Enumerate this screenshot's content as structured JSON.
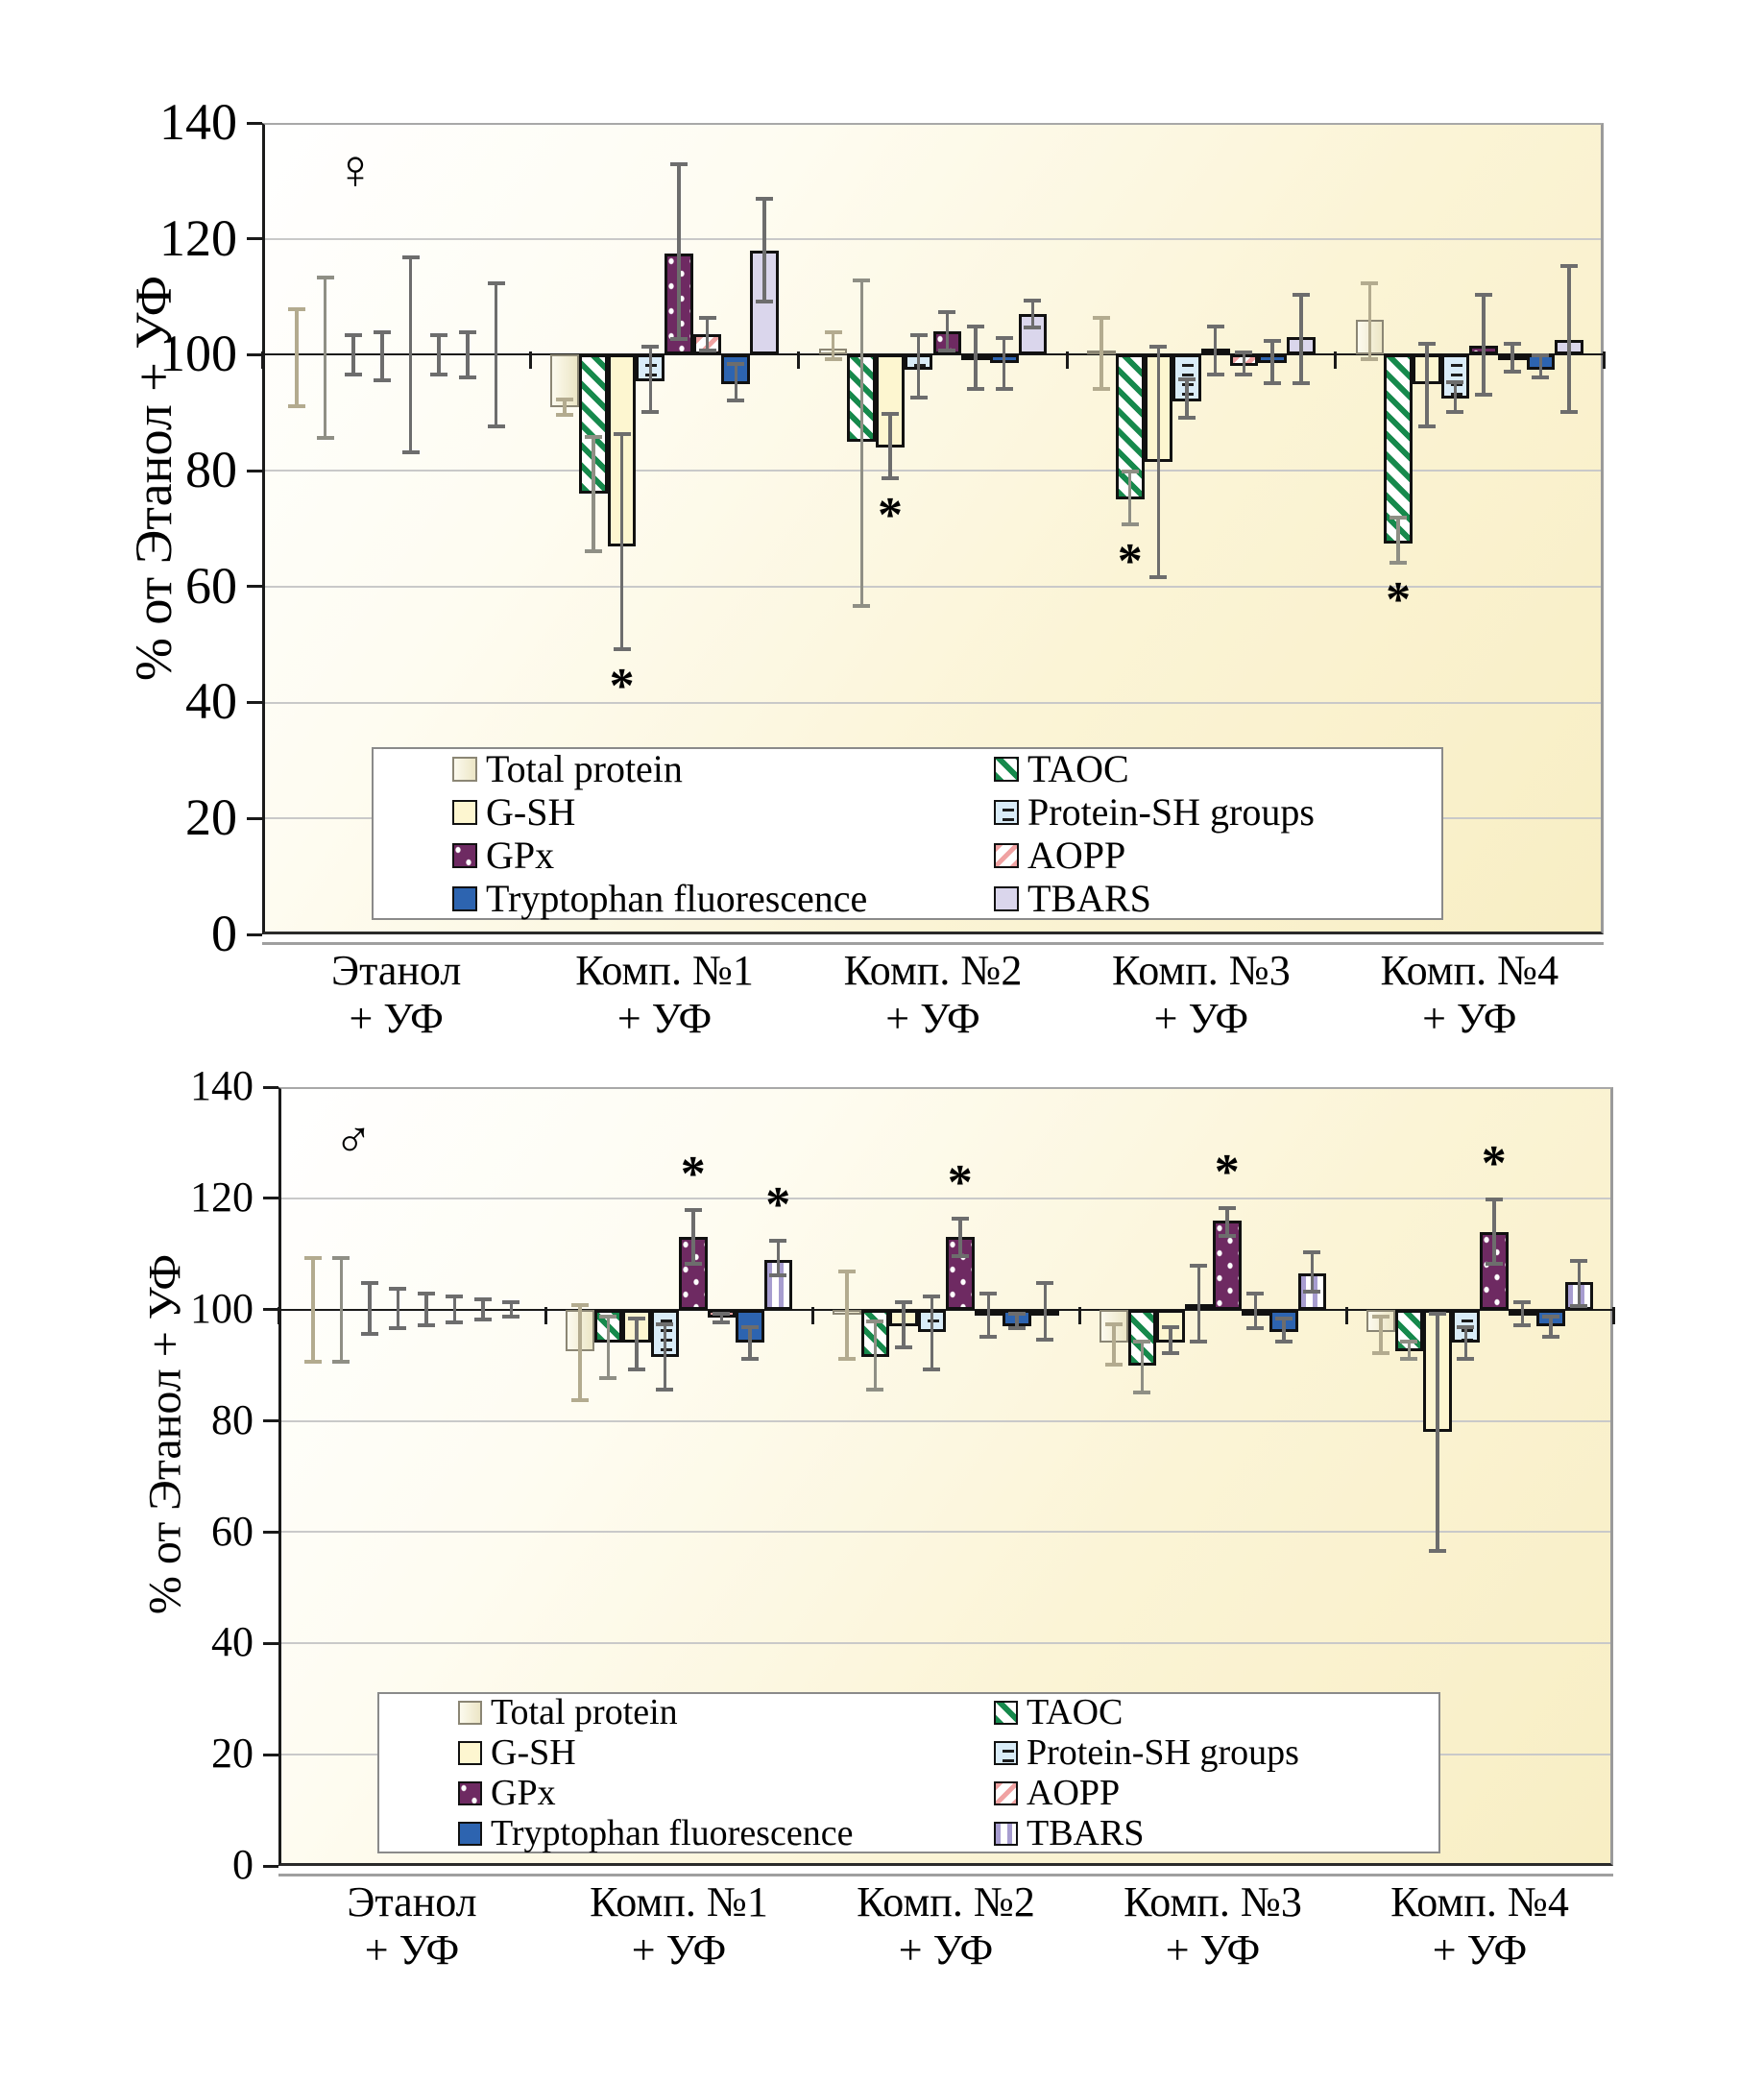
{
  "figure": {
    "annotation_symbol": "*",
    "background_color": "#ffffff",
    "plot_gradient": [
      "#ffffff",
      "#f8eec4"
    ]
  },
  "series_defs": {
    "total_protein": {
      "label": "Total protein",
      "pattern": "gradient",
      "fill": "#ece6c6",
      "fill2": "#fcfaee",
      "border": "#8b8674",
      "border_w": 2,
      "err_color": "#b3ab8f"
    },
    "taoc": {
      "label": "TAOC",
      "pattern": "stripes45",
      "fill": "#ffffff",
      "stripe": "#16894c",
      "border": "#111111",
      "border_w": 3,
      "err_color": "#8f8f85"
    },
    "gsh": {
      "label": "G-SH",
      "pattern": "solid",
      "fill": "#fdf6d0",
      "border": "#111111",
      "border_w": 3,
      "err_color": "#6d6d6d"
    },
    "protein_sh": {
      "label": "Protein-SH groups",
      "pattern": "dashes",
      "fill": "#d9ecf8",
      "stripe": "#1c1c1c",
      "border": "#111111",
      "border_w": 3,
      "err_color": "#6d6d6d"
    },
    "gpx": {
      "label": "GPx",
      "pattern": "dots",
      "fill": "#6e2a62",
      "stripe": "#ffffff",
      "border": "#111111",
      "border_w": 3,
      "err_color": "#6d6d6d"
    },
    "aopp": {
      "label": "AOPP",
      "pattern": "stripes135",
      "fill": "#ffffff",
      "stripe": "#f0a2a2",
      "border": "#111111",
      "border_w": 3,
      "err_color": "#6d6d6d"
    },
    "tryptophan": {
      "label": "Tryptophan fluorescence",
      "pattern": "solid",
      "fill": "#2d64b0",
      "border": "#111111",
      "border_w": 3,
      "err_color": "#6d6d6d"
    },
    "tbars": {
      "label": "TBARS",
      "pattern": "solid",
      "fill": "#dad6ec",
      "stripe": "#a79dd0",
      "border": "#111111",
      "border_w": 3,
      "err_color": "#6d6d6d"
    }
  },
  "legend": {
    "columns": [
      [
        "total_protein",
        "gsh",
        "gpx",
        "tryptophan"
      ],
      [
        "taoc",
        "protein_sh",
        "aopp",
        "tbars"
      ]
    ]
  },
  "bar_order": [
    "total_protein",
    "taoc",
    "gsh",
    "protein_sh",
    "gpx",
    "aopp",
    "tryptophan",
    "tbars"
  ],
  "chart_data": [
    {
      "type": "bar",
      "gender_symbol": "♀",
      "ylabel": "% от Этанол + УФ",
      "ylim": [
        0,
        140
      ],
      "yticks": [
        0,
        20,
        40,
        60,
        80,
        100,
        120,
        140
      ],
      "baseline": 100,
      "grid": true,
      "legend_position": "bottom-inside",
      "tbars_style": "solid",
      "categories": [
        [
          "Этанол",
          "+ УФ"
        ],
        [
          "Комп. №1",
          "+ УФ"
        ],
        [
          "Комп. №2",
          "+ УФ"
        ],
        [
          "Комп. №3",
          "+ УФ"
        ],
        [
          "Комп. №4",
          "+ УФ"
        ]
      ],
      "groups": [
        {
          "bars": [
            {
              "series": "total_protein",
              "value": 100,
              "err_low": 91,
              "err_high": 108,
              "star": null
            },
            {
              "series": "taoc",
              "value": 100,
              "err_low": 85.5,
              "err_high": 113.5,
              "star": null
            },
            {
              "series": "gsh",
              "value": 100,
              "err_low": 96.5,
              "err_high": 103.5,
              "star": null
            },
            {
              "series": "protein_sh",
              "value": 100,
              "err_low": 95.5,
              "err_high": 104,
              "star": null
            },
            {
              "series": "gpx",
              "value": 100,
              "err_low": 83,
              "err_high": 117,
              "star": null
            },
            {
              "series": "aopp",
              "value": 100,
              "err_low": 96.5,
              "err_high": 103.5,
              "star": null
            },
            {
              "series": "tryptophan",
              "value": 100,
              "err_low": 96,
              "err_high": 104,
              "star": null
            },
            {
              "series": "tbars",
              "value": 100,
              "err_low": 87.5,
              "err_high": 112.5,
              "star": null
            }
          ]
        },
        {
          "bars": [
            {
              "series": "total_protein",
              "value": 91,
              "err_low": 89.5,
              "err_high": 92.5,
              "star": null
            },
            {
              "series": "taoc",
              "value": 76,
              "err_low": 66,
              "err_high": 86,
              "star": null
            },
            {
              "series": "gsh",
              "value": 67,
              "err_low": 49,
              "err_high": 86.5,
              "star": "below"
            },
            {
              "series": "protein_sh",
              "value": 95.5,
              "err_low": 90,
              "err_high": 101.5,
              "star": null
            },
            {
              "series": "gpx",
              "value": 117.5,
              "err_low": 102.5,
              "err_high": 133,
              "star": null
            },
            {
              "series": "aopp",
              "value": 103.5,
              "err_low": 100.5,
              "err_high": 106.5,
              "star": null
            },
            {
              "series": "tryptophan",
              "value": 95,
              "err_low": 92,
              "err_high": 98.5,
              "star": null
            },
            {
              "series": "tbars",
              "value": 118,
              "err_low": 109,
              "err_high": 127,
              "star": null
            }
          ]
        },
        {
          "bars": [
            {
              "series": "total_protein",
              "value": 101,
              "err_low": 99,
              "err_high": 104,
              "star": null
            },
            {
              "series": "taoc",
              "value": 85,
              "err_low": 56.5,
              "err_high": 113,
              "star": null
            },
            {
              "series": "gsh",
              "value": 84,
              "err_low": 78.5,
              "err_high": 90,
              "star": "below"
            },
            {
              "series": "protein_sh",
              "value": 97.5,
              "err_low": 92.5,
              "err_high": 103.5,
              "star": null
            },
            {
              "series": "gpx",
              "value": 104,
              "err_low": 100.5,
              "err_high": 107.5,
              "star": null
            },
            {
              "series": "aopp",
              "value": 99,
              "err_low": 94,
              "err_high": 105,
              "star": null
            },
            {
              "series": "tryptophan",
              "value": 98.5,
              "err_low": 94,
              "err_high": 103,
              "star": null
            },
            {
              "series": "tbars",
              "value": 107,
              "err_low": 104.5,
              "err_high": 109.5,
              "star": null
            }
          ]
        },
        {
          "bars": [
            {
              "series": "total_protein",
              "value": 100.5,
              "err_low": 94,
              "err_high": 106.5,
              "star": null
            },
            {
              "series": "taoc",
              "value": 75,
              "err_low": 70.5,
              "err_high": 80,
              "star": "below"
            },
            {
              "series": "gsh",
              "value": 81.5,
              "err_low": 61.5,
              "err_high": 101.5,
              "star": null
            },
            {
              "series": "protein_sh",
              "value": 92,
              "err_low": 89,
              "err_high": 96,
              "star": null
            },
            {
              "series": "gpx",
              "value": 101,
              "err_low": 96.5,
              "err_high": 105,
              "star": null
            },
            {
              "series": "aopp",
              "value": 98,
              "err_low": 96.5,
              "err_high": 100.5,
              "star": null
            },
            {
              "series": "tryptophan",
              "value": 98.5,
              "err_low": 95,
              "err_high": 102.5,
              "star": null
            },
            {
              "series": "tbars",
              "value": 103,
              "err_low": 95,
              "err_high": 110.5,
              "star": null
            }
          ]
        },
        {
          "bars": [
            {
              "series": "total_protein",
              "value": 106,
              "err_low": 99,
              "err_high": 112.5,
              "star": null
            },
            {
              "series": "taoc",
              "value": 67.5,
              "err_low": 64,
              "err_high": 72,
              "star": "below"
            },
            {
              "series": "gsh",
              "value": 95,
              "err_low": 87.5,
              "err_high": 102,
              "star": null
            },
            {
              "series": "protein_sh",
              "value": 92.5,
              "err_low": 90,
              "err_high": 95.5,
              "star": null
            },
            {
              "series": "gpx",
              "value": 101.5,
              "err_low": 93,
              "err_high": 110.5,
              "star": null
            },
            {
              "series": "aopp",
              "value": 99.5,
              "err_low": 97,
              "err_high": 102,
              "star": null
            },
            {
              "series": "tryptophan",
              "value": 97.5,
              "err_low": 96,
              "err_high": 100,
              "star": null
            },
            {
              "series": "tbars",
              "value": 102.5,
              "err_low": 90,
              "err_high": 115.5,
              "star": null
            }
          ]
        }
      ]
    },
    {
      "type": "bar",
      "gender_symbol": "♂",
      "ylabel": "% от Этанол + УФ",
      "ylim": [
        0,
        140
      ],
      "yticks": [
        0,
        20,
        40,
        60,
        80,
        100,
        120,
        140
      ],
      "baseline": 100,
      "grid": true,
      "legend_position": "bottom-inside",
      "tbars_style": "vertical-stripes",
      "categories": [
        [
          "Этанол",
          "+ УФ"
        ],
        [
          "Комп. №1",
          "+ УФ"
        ],
        [
          "Комп. №2",
          "+ УФ"
        ],
        [
          "Комп. №3",
          "+ УФ"
        ],
        [
          "Комп. №4",
          "+ УФ"
        ]
      ],
      "groups": [
        {
          "bars": [
            {
              "series": "total_protein",
              "value": 100,
              "err_low": 90.5,
              "err_high": 109.5,
              "star": null
            },
            {
              "series": "taoc",
              "value": 100,
              "err_low": 90.5,
              "err_high": 109.5,
              "star": null
            },
            {
              "series": "gsh",
              "value": 100,
              "err_low": 95.5,
              "err_high": 105,
              "star": null
            },
            {
              "series": "protein_sh",
              "value": 100,
              "err_low": 96.5,
              "err_high": 104,
              "star": null
            },
            {
              "series": "gpx",
              "value": 100,
              "err_low": 97,
              "err_high": 103,
              "star": null
            },
            {
              "series": "aopp",
              "value": 100,
              "err_low": 97.5,
              "err_high": 102.5,
              "star": null
            },
            {
              "series": "tryptophan",
              "value": 100,
              "err_low": 98,
              "err_high": 102,
              "star": null
            },
            {
              "series": "tbars",
              "value": 100,
              "err_low": 98.5,
              "err_high": 101.5,
              "star": null
            }
          ]
        },
        {
          "bars": [
            {
              "series": "total_protein",
              "value": 92.5,
              "err_low": 83.5,
              "err_high": 101,
              "star": null
            },
            {
              "series": "taoc",
              "value": 94,
              "err_low": 87.5,
              "err_high": 99,
              "star": null
            },
            {
              "series": "gsh",
              "value": 94,
              "err_low": 89,
              "err_high": 98.5,
              "star": null
            },
            {
              "series": "protein_sh",
              "value": 91.5,
              "err_low": 85.5,
              "err_high": 97.5,
              "star": null
            },
            {
              "series": "gpx",
              "value": 113,
              "err_low": 108,
              "err_high": 118,
              "star": "above"
            },
            {
              "series": "aopp",
              "value": 98.5,
              "err_low": 97.5,
              "err_high": 99.5,
              "star": null
            },
            {
              "series": "tryptophan",
              "value": 94,
              "err_low": 91,
              "err_high": 97,
              "star": null
            },
            {
              "series": "tbars",
              "value": 109,
              "err_low": 106,
              "err_high": 112.5,
              "star": "above"
            }
          ]
        },
        {
          "bars": [
            {
              "series": "total_protein",
              "value": 99,
              "err_low": 91,
              "err_high": 107,
              "star": null
            },
            {
              "series": "taoc",
              "value": 91.5,
              "err_low": 85.5,
              "err_high": 98,
              "star": null
            },
            {
              "series": "gsh",
              "value": 97,
              "err_low": 93,
              "err_high": 101.5,
              "star": null
            },
            {
              "series": "protein_sh",
              "value": 96,
              "err_low": 89,
              "err_high": 102.5,
              "star": null
            },
            {
              "series": "gpx",
              "value": 113,
              "err_low": 109.5,
              "err_high": 116.5,
              "star": "above"
            },
            {
              "series": "aopp",
              "value": 99,
              "err_low": 95,
              "err_high": 103,
              "star": null
            },
            {
              "series": "tryptophan",
              "value": 97,
              "err_low": 96.5,
              "err_high": 99.5,
              "star": null
            },
            {
              "series": "tbars",
              "value": 99.5,
              "err_low": 94.5,
              "err_high": 105,
              "star": null
            }
          ]
        },
        {
          "bars": [
            {
              "series": "total_protein",
              "value": 94,
              "err_low": 90,
              "err_high": 97.5,
              "star": null
            },
            {
              "series": "taoc",
              "value": 90,
              "err_low": 85,
              "err_high": 94.5,
              "star": null
            },
            {
              "series": "gsh",
              "value": 94,
              "err_low": 92,
              "err_high": 97,
              "star": null
            },
            {
              "series": "protein_sh",
              "value": 101,
              "err_low": 94,
              "err_high": 108,
              "star": null
            },
            {
              "series": "gpx",
              "value": 116,
              "err_low": 113,
              "err_high": 118.5,
              "star": "above"
            },
            {
              "series": "aopp",
              "value": 99.5,
              "err_low": 96.5,
              "err_high": 103,
              "star": null
            },
            {
              "series": "tryptophan",
              "value": 96,
              "err_low": 94,
              "err_high": 98.5,
              "star": null
            },
            {
              "series": "tbars",
              "value": 106.5,
              "err_low": 103,
              "err_high": 110.5,
              "star": null
            }
          ]
        },
        {
          "bars": [
            {
              "series": "total_protein",
              "value": 96,
              "err_low": 92,
              "err_high": 99,
              "star": null
            },
            {
              "series": "taoc",
              "value": 92.5,
              "err_low": 91,
              "err_high": 94.5,
              "star": null
            },
            {
              "series": "gsh",
              "value": 78,
              "err_low": 56.5,
              "err_high": 99.5,
              "star": null
            },
            {
              "series": "protein_sh",
              "value": 94,
              "err_low": 91,
              "err_high": 97,
              "star": null
            },
            {
              "series": "gpx",
              "value": 114,
              "err_low": 108,
              "err_high": 120,
              "star": "above"
            },
            {
              "series": "aopp",
              "value": 99.5,
              "err_low": 97,
              "err_high": 101.5,
              "star": null
            },
            {
              "series": "tryptophan",
              "value": 97,
              "err_low": 95,
              "err_high": 99,
              "star": null
            },
            {
              "series": "tbars",
              "value": 105,
              "err_low": 100.5,
              "err_high": 109,
              "star": null
            }
          ]
        }
      ]
    }
  ]
}
